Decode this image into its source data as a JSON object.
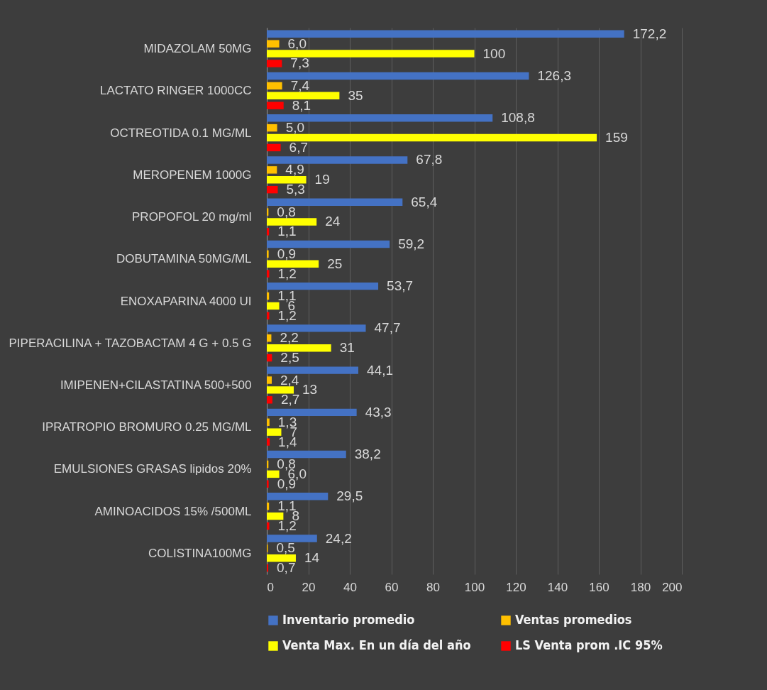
{
  "chart_data": {
    "type": "bar",
    "orientation": "horizontal",
    "categories": [
      "MIDAZOLAM 50MG",
      "LACTATO RINGER 1000CC",
      "OCTREOTIDA 0.1 MG/ML",
      "MEROPENEM 1000G",
      "PROPOFOL 20 mg/ml",
      "DOBUTAMINA 50MG/ML",
      "ENOXAPARINA 4000 UI",
      "PIPERACILINA + TAZOBACTAM 4 G + 0.5 G",
      "IMIPENEN+CILASTATINA 500+500",
      "IPRATROPIO BROMURO 0.25 MG/ML",
      "EMULSIONES GRASAS lipidos 20%",
      "AMINOACIDOS 15% /500ML",
      "COLISTINA100MG"
    ],
    "series": [
      {
        "name": "Inventario promedio",
        "color": "#4472c4",
        "values": [
          172.2,
          126.3,
          108.8,
          67.8,
          65.4,
          59.2,
          53.7,
          47.7,
          44.1,
          43.3,
          38.2,
          29.5,
          24.2
        ],
        "value_labels": [
          "172,2",
          "126,3",
          "108,8",
          "67,8",
          "65,4",
          "59,2",
          "53,7",
          "47,7",
          "44,1",
          "43,3",
          "38,2",
          "29,5",
          "24,2"
        ]
      },
      {
        "name": "Ventas promedios",
        "color": "#ffc000",
        "values": [
          6.0,
          7.4,
          5.0,
          4.9,
          0.8,
          0.9,
          1.1,
          2.2,
          2.4,
          1.3,
          0.8,
          1.1,
          0.5
        ],
        "value_labels": [
          "6,0",
          "7,4",
          "5,0",
          "4,9",
          "0,8",
          "0,9",
          "1,1",
          "2,2",
          "2,4",
          "1,3",
          "0,8",
          "1,1",
          "0,5"
        ]
      },
      {
        "name": "Venta Max. En un día del año",
        "color": "#ffff00",
        "values": [
          100,
          35,
          159,
          19,
          24,
          25,
          6,
          31,
          13,
          7,
          6.0,
          8,
          14
        ],
        "value_labels": [
          "100",
          "35",
          "159",
          "19",
          "24",
          "25",
          "6",
          "31",
          "13",
          "7",
          "6,0",
          "8",
          "14"
        ]
      },
      {
        "name": "LS Venta prom .IC 95%",
        "color": "#ff0000",
        "values": [
          7.3,
          8.1,
          6.7,
          5.3,
          1.1,
          1.2,
          1.2,
          2.5,
          2.7,
          1.4,
          0.9,
          1.2,
          0.7
        ],
        "value_labels": [
          "7,3",
          "8,1",
          "6,7",
          "5,3",
          "1,1",
          "1,2",
          "1,2",
          "2,5",
          "2,7",
          "1,4",
          "0,9",
          "1,2",
          "0,7"
        ]
      }
    ],
    "xlim": [
      0,
      200
    ],
    "xticks": [
      0,
      20,
      40,
      60,
      80,
      100,
      120,
      140,
      160,
      180,
      200
    ],
    "grid": "x",
    "legend": "bottom"
  }
}
